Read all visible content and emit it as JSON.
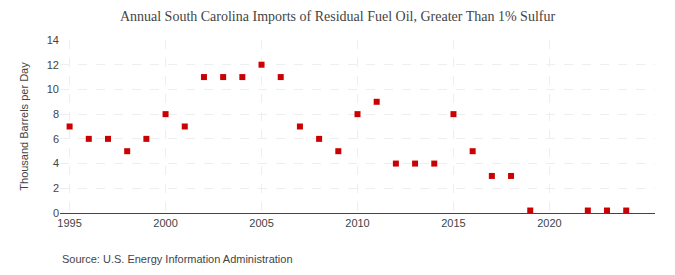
{
  "chart_data": {
    "type": "scatter",
    "title": "Annual South Carolina Imports of Residual Fuel Oil, Greater Than 1% Sulfur",
    "ylabel": "Thousand Barrels per Day",
    "annotations": [
      "Source: U.S. Energy Information Administration"
    ],
    "x": [
      1995,
      1996,
      1997,
      1998,
      1999,
      2000,
      2001,
      2002,
      2003,
      2004,
      2005,
      2006,
      2007,
      2008,
      2009,
      2010,
      2011,
      2012,
      2013,
      2014,
      2015,
      2016,
      2017,
      2018,
      2019,
      2022,
      2023,
      2024
    ],
    "values": [
      7,
      6,
      6,
      5,
      6,
      8,
      7,
      11,
      11,
      11,
      12,
      11,
      7,
      6,
      5,
      8,
      9,
      4,
      4,
      4,
      8,
      5,
      3,
      3,
      0.2,
      0.2,
      0.2,
      0.2
    ],
    "color": "#cc0000",
    "marker": "square",
    "xlim": [
      1994.5,
      2025.5
    ],
    "xticks": [
      1995,
      2000,
      2005,
      2010,
      2015,
      2020
    ],
    "ylim": [
      0,
      14
    ],
    "yticks": [
      0,
      2,
      4,
      6,
      8,
      10,
      12,
      14
    ],
    "grid": true
  }
}
